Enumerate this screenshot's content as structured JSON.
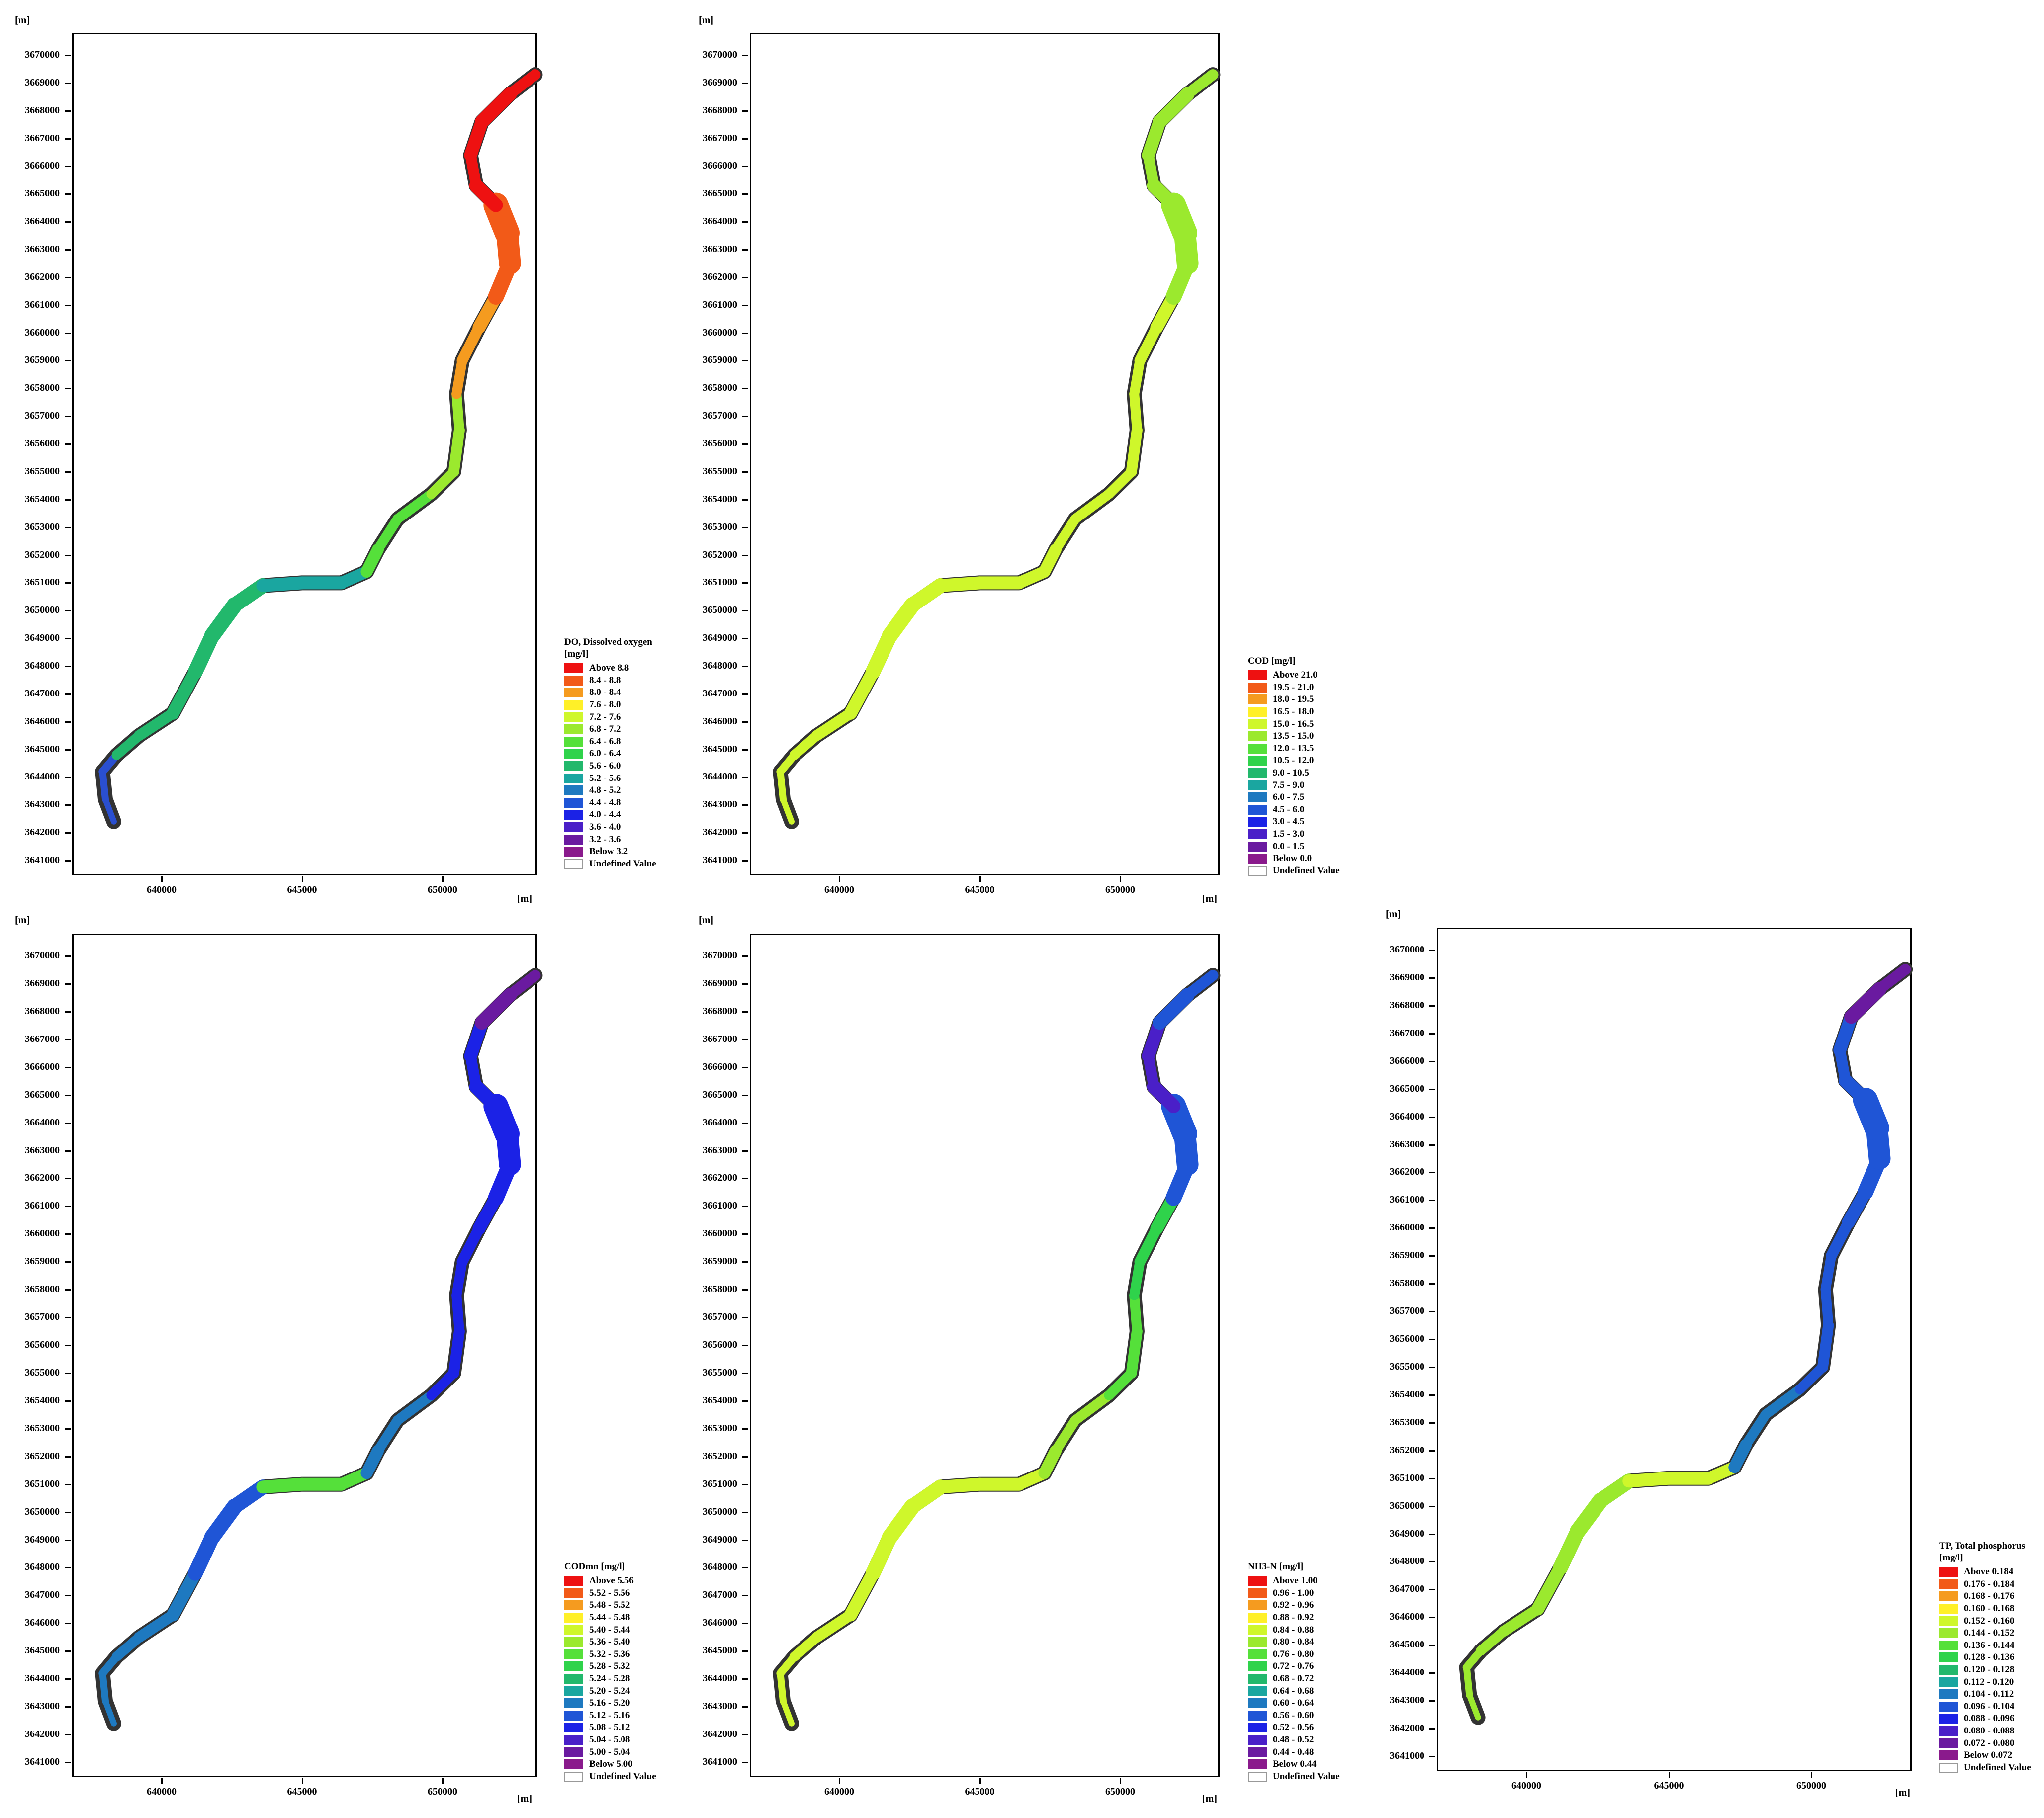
{
  "unit_label": "[m]",
  "y_ticks": [
    "3670000",
    "3669000",
    "3668000",
    "3667000",
    "3666000",
    "3665000",
    "3664000",
    "3663000",
    "3662000",
    "3661000",
    "3660000",
    "3659000",
    "3658000",
    "3657000",
    "3656000",
    "3655000",
    "3654000",
    "3653000",
    "3652000",
    "3651000",
    "3650000",
    "3649000",
    "3648000",
    "3647000",
    "3646000",
    "3645000",
    "3644000",
    "3643000",
    "3642000",
    "3641000"
  ],
  "x_ticks": [
    "640000",
    "645000",
    "650000"
  ],
  "legend_colors": [
    "#ee1111",
    "#f25a18",
    "#f59b1f",
    "#fff028",
    "#cff72b",
    "#9be92e",
    "#55e03a",
    "#2fd34b",
    "#22b86c",
    "#1aa6a0",
    "#1e79c0",
    "#1f55d6",
    "#1b22e6",
    "#4a1fc8",
    "#6a1aa0",
    "#8a1a8c"
  ],
  "panels": [
    {
      "id": "do",
      "title": "DO, Dissolved oxygen",
      "title_unit": "[mg/l]",
      "legend": [
        "Above 8.8",
        "8.4 - 8.8",
        "8.0 - 8.4",
        "7.6 - 8.0",
        "7.2 - 7.6",
        "6.8 - 7.2",
        "6.4 - 6.8",
        "6.0 - 6.4",
        "5.6 - 6.0",
        "5.2 - 5.6",
        "4.8 - 5.2",
        "4.4 - 4.8",
        "4.0 - 4.4",
        "3.6 - 4.0",
        "3.2 - 3.6",
        "Below 3.2",
        "Undefined Value"
      ],
      "river_colors": [
        "#2a4fd0",
        "#22b86c",
        "#22b86c",
        "#1aa6a0",
        "#55e03a",
        "#9be92e",
        "#f59b1f",
        "#f25a18",
        "#ee1111",
        "#ee1111"
      ]
    },
    {
      "id": "cod",
      "title": "COD [mg/l]",
      "title_unit": "",
      "legend": [
        "Above 21.0",
        "19.5 - 21.0",
        "18.0 - 19.5",
        "16.5 - 18.0",
        "15.0 - 16.5",
        "13.5 - 15.0",
        "12.0 - 13.5",
        "10.5 - 12.0",
        "9.0 - 10.5",
        "7.5 -  9.0",
        "6.0 -  7.5",
        "4.5 -  6.0",
        "3.0 -  4.5",
        "1.5 -  3.0",
        "0.0 -  1.5",
        "Below  0.0",
        "Undefined Value"
      ],
      "river_colors": [
        "#cff72b",
        "#cff72b",
        "#cff72b",
        "#cff72b",
        "#cff72b",
        "#cff72b",
        "#cff72b",
        "#9be92e",
        "#9be92e",
        "#9be92e"
      ]
    },
    {
      "id": "codmn",
      "title": "CODmn [mg/l]",
      "title_unit": "",
      "legend": [
        "Above 5.56",
        "5.52 - 5.56",
        "5.48 - 5.52",
        "5.44 - 5.48",
        "5.40 - 5.44",
        "5.36 - 5.40",
        "5.32 - 5.36",
        "5.28 - 5.32",
        "5.24 - 5.28",
        "5.20 - 5.24",
        "5.16 - 5.20",
        "5.12 - 5.16",
        "5.08 - 5.12",
        "5.04 - 5.08",
        "5.00 - 5.04",
        "Below 5.00",
        "Undefined Value"
      ],
      "river_colors": [
        "#1e79c0",
        "#1e79c0",
        "#1f55d6",
        "#55e03a",
        "#1e79c0",
        "#1b22e6",
        "#1b22e6",
        "#1b22e6",
        "#1b22e6",
        "#6a1aa0"
      ]
    },
    {
      "id": "nh3n",
      "title": "NH3-N [mg/l]",
      "title_unit": "",
      "legend": [
        "Above 1.00",
        "0.96 - 1.00",
        "0.92 - 0.96",
        "0.88 - 0.92",
        "0.84 - 0.88",
        "0.80 - 0.84",
        "0.76 - 0.80",
        "0.72 - 0.76",
        "0.68 - 0.72",
        "0.64 - 0.68",
        "0.60 - 0.64",
        "0.56 - 0.60",
        "0.52 - 0.56",
        "0.48 - 0.52",
        "0.44 - 0.48",
        "Below 0.44",
        "Undefined Value"
      ],
      "river_colors": [
        "#cff72b",
        "#cff72b",
        "#cff72b",
        "#cff72b",
        "#9be92e",
        "#55e03a",
        "#2fd34b",
        "#1f55d6",
        "#4a1fc8",
        "#1f55d6"
      ]
    },
    {
      "id": "tp",
      "title": "TP, Total phosphorus",
      "title_unit": "[mg/l]",
      "legend": [
        "Above 0.184",
        "0.176 - 0.184",
        "0.168 - 0.176",
        "0.160 - 0.168",
        "0.152 - 0.160",
        "0.144 - 0.152",
        "0.136 - 0.144",
        "0.128 - 0.136",
        "0.120 - 0.128",
        "0.112 - 0.120",
        "0.104 - 0.112",
        "0.096 - 0.104",
        "0.088 - 0.096",
        "0.080 - 0.088",
        "0.072 - 0.080",
        "Below 0.072",
        "Undefined Value"
      ],
      "river_colors": [
        "#9be92e",
        "#9be92e",
        "#9be92e",
        "#cff72b",
        "#1e79c0",
        "#1f55d6",
        "#1f55d6",
        "#1f55d6",
        "#1f55d6",
        "#6a1aa0"
      ]
    }
  ]
}
